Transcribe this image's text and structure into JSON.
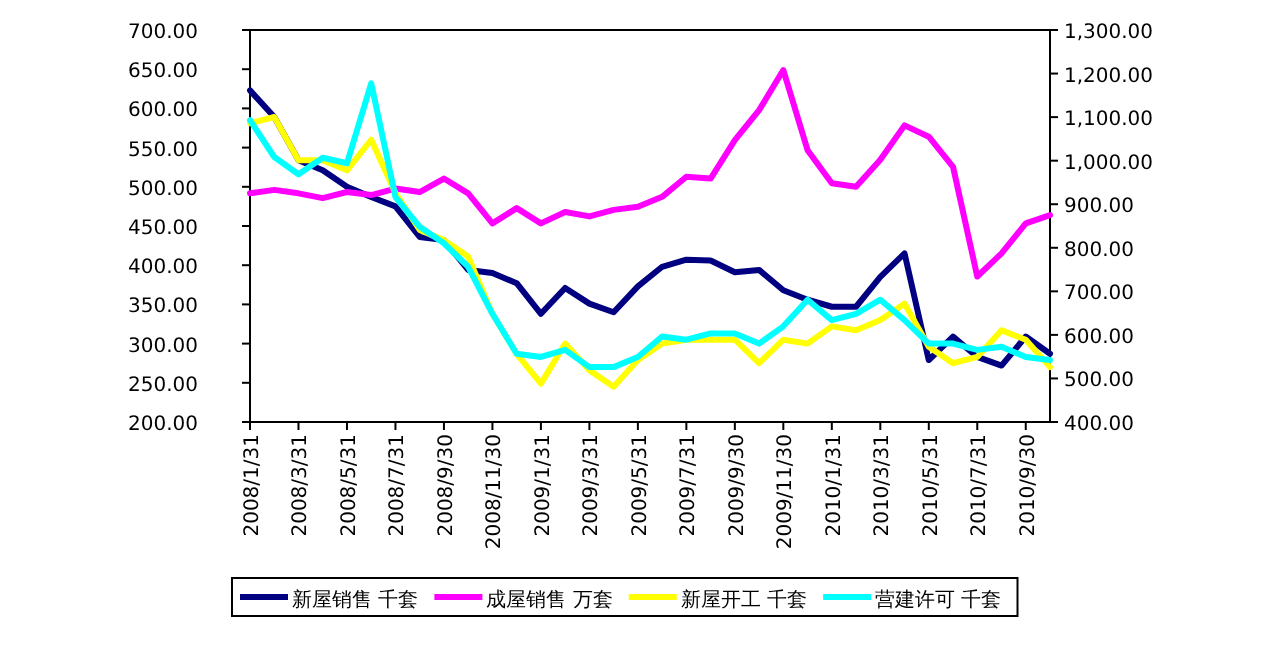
{
  "chart_data": {
    "type": "line",
    "categories": [
      "2008/1/31",
      null,
      "2008/3/31",
      null,
      "2008/5/31",
      null,
      "2008/7/31",
      null,
      "2008/9/30",
      null,
      "2008/11/30",
      null,
      "2009/1/31",
      null,
      "2009/3/31",
      null,
      "2009/5/31",
      null,
      "2009/7/31",
      null,
      "2009/9/30",
      null,
      "2009/11/30",
      null,
      "2010/1/31",
      null,
      "2010/3/31",
      null,
      "2010/5/31",
      null,
      "2010/7/31",
      null,
      "2010/9/30",
      null
    ],
    "series": [
      {
        "name": "新屋销售 千套",
        "color": "#000080",
        "values": [
          623,
          589,
          534,
          521,
          500,
          487,
          475,
          436,
          432,
          394,
          390,
          377,
          338,
          371,
          351,
          340,
          373,
          398,
          407,
          406,
          391,
          394,
          368,
          356,
          347,
          347,
          385,
          415,
          279,
          309,
          283,
          272,
          309,
          287
        ]
      },
      {
        "name": "成屋销售 万套",
        "color": "#ff00ff",
        "axis": "y2",
        "values": [
          925,
          933,
          925,
          914,
          928,
          921,
          936,
          928,
          959,
          925,
          856,
          891,
          856,
          882,
          872,
          887,
          894,
          917,
          963,
          959,
          1047,
          1116,
          1208,
          1024,
          948,
          940,
          1002,
          1081,
          1055,
          986,
          734,
          787,
          856,
          875
        ]
      },
      {
        "name": "新屋开工 千套",
        "color": "#ffff00",
        "values": [
          581,
          589,
          534,
          534,
          521,
          560,
          492,
          445,
          432,
          411,
          338,
          287,
          249,
          300,
          266,
          245,
          279,
          300,
          305,
          305,
          305,
          275,
          305,
          300,
          322,
          317,
          330,
          351,
          296,
          275,
          283,
          317,
          305,
          270
        ]
      },
      {
        "name": "营建许可 千套",
        "color": "#00ffff",
        "values": [
          585,
          538,
          516,
          537,
          530,
          632,
          487,
          449,
          428,
          398,
          338,
          287,
          283,
          292,
          270,
          270,
          283,
          309,
          305,
          313,
          313,
          300,
          322,
          356,
          330,
          338,
          356,
          330,
          300,
          300,
          292,
          296,
          283,
          279
        ]
      }
    ],
    "ylim": [
      200,
      700
    ],
    "yticks": [
      {
        "value": 200,
        "label": "200.00"
      },
      {
        "value": 250,
        "label": "250.00"
      },
      {
        "value": 300,
        "label": "300.00"
      },
      {
        "value": 350,
        "label": "350.00"
      },
      {
        "value": 400,
        "label": "400.00"
      },
      {
        "value": 450,
        "label": "450.00"
      },
      {
        "value": 500,
        "label": "500.00"
      },
      {
        "value": 550,
        "label": "550.00"
      },
      {
        "value": 600,
        "label": "600.00"
      },
      {
        "value": 650,
        "label": "650.00"
      },
      {
        "value": 700,
        "label": "700.00"
      }
    ],
    "y2lim": [
      400,
      1300
    ],
    "y2ticks": [
      {
        "value": 400,
        "label": "400.00"
      },
      {
        "value": 500,
        "label": "500.00"
      },
      {
        "value": 600,
        "label": "600.00"
      },
      {
        "value": 700,
        "label": "700.00"
      },
      {
        "value": 800,
        "label": "800.00"
      },
      {
        "value": 900,
        "label": "900.00"
      },
      {
        "value": 1000,
        "label": "1,000.00"
      },
      {
        "value": 1100,
        "label": "1,100.00"
      },
      {
        "value": 1200,
        "label": "1,200.00"
      },
      {
        "value": 1300,
        "label": "1,300.00"
      }
    ],
    "legend": "bottom",
    "marker": "none",
    "line_style": "solid",
    "grid": false
  }
}
